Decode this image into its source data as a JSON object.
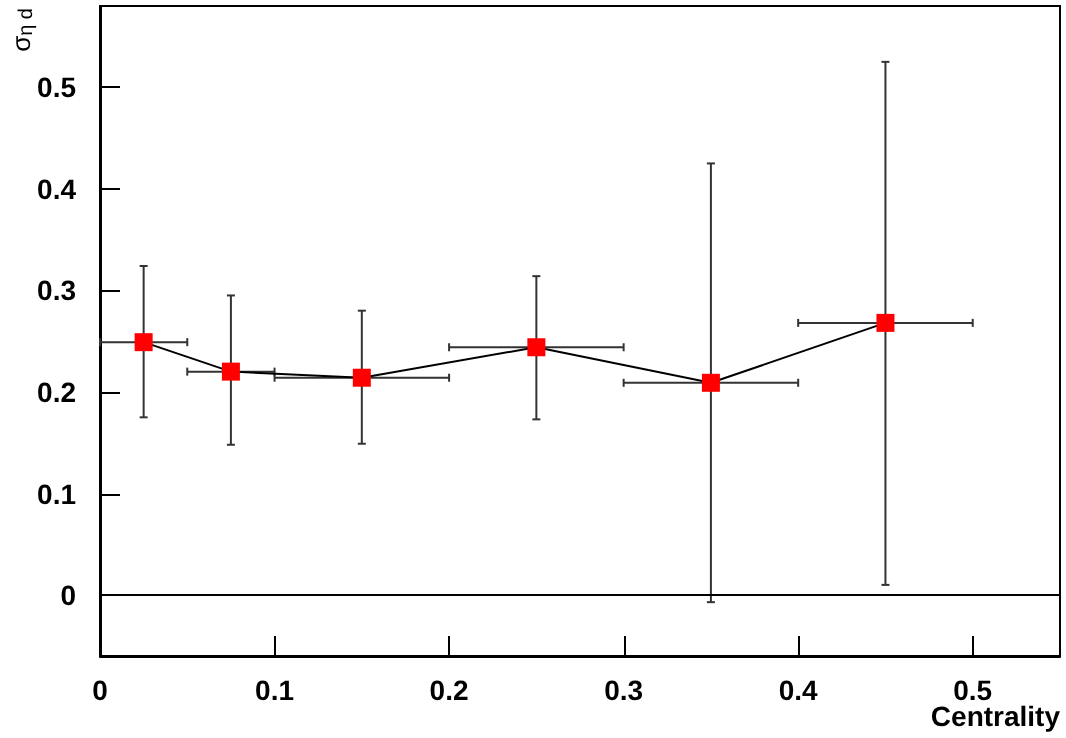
{
  "chart_data": {
    "type": "line",
    "xlabel": "Centrality",
    "ylabel": "σ$_{η d}$",
    "x": [
      0.025,
      0.075,
      0.15,
      0.25,
      0.35,
      0.45
    ],
    "series": [
      {
        "color": "#ff0000",
        "values": [
          0.249,
          0.22,
          0.214,
          0.244,
          0.209,
          0.268
        ],
        "errors": [
          [
            0.175,
            0.324
          ],
          [
            0.148,
            0.295
          ],
          [
            0.149,
            0.28
          ],
          [
            0.173,
            0.314
          ],
          [
            -0.007,
            0.425
          ],
          [
            0.01,
            0.525
          ]
        ],
        "xerrors": [
          [
            0,
            0.05
          ],
          [
            0.05,
            0.1
          ],
          [
            0.1,
            0.2
          ],
          [
            0.2,
            0.3
          ],
          [
            0.3,
            0.4
          ],
          [
            0.4,
            0.5
          ]
        ]
      }
    ],
    "xlim": [
      0,
      0.55
    ],
    "xticks": [
      0,
      0.1,
      0.2,
      0.3,
      0.4,
      0.5
    ],
    "ylim": [
      -0.06,
      0.58
    ],
    "yticks": [
      0,
      0.1,
      0.2,
      0.3,
      0.4,
      0.5
    ],
    "ref_lines": [
      {
        "axis": "y",
        "value": 0,
        "color": "#000000"
      }
    ],
    "grid": false,
    "marker": "square",
    "line_style": "solid"
  }
}
